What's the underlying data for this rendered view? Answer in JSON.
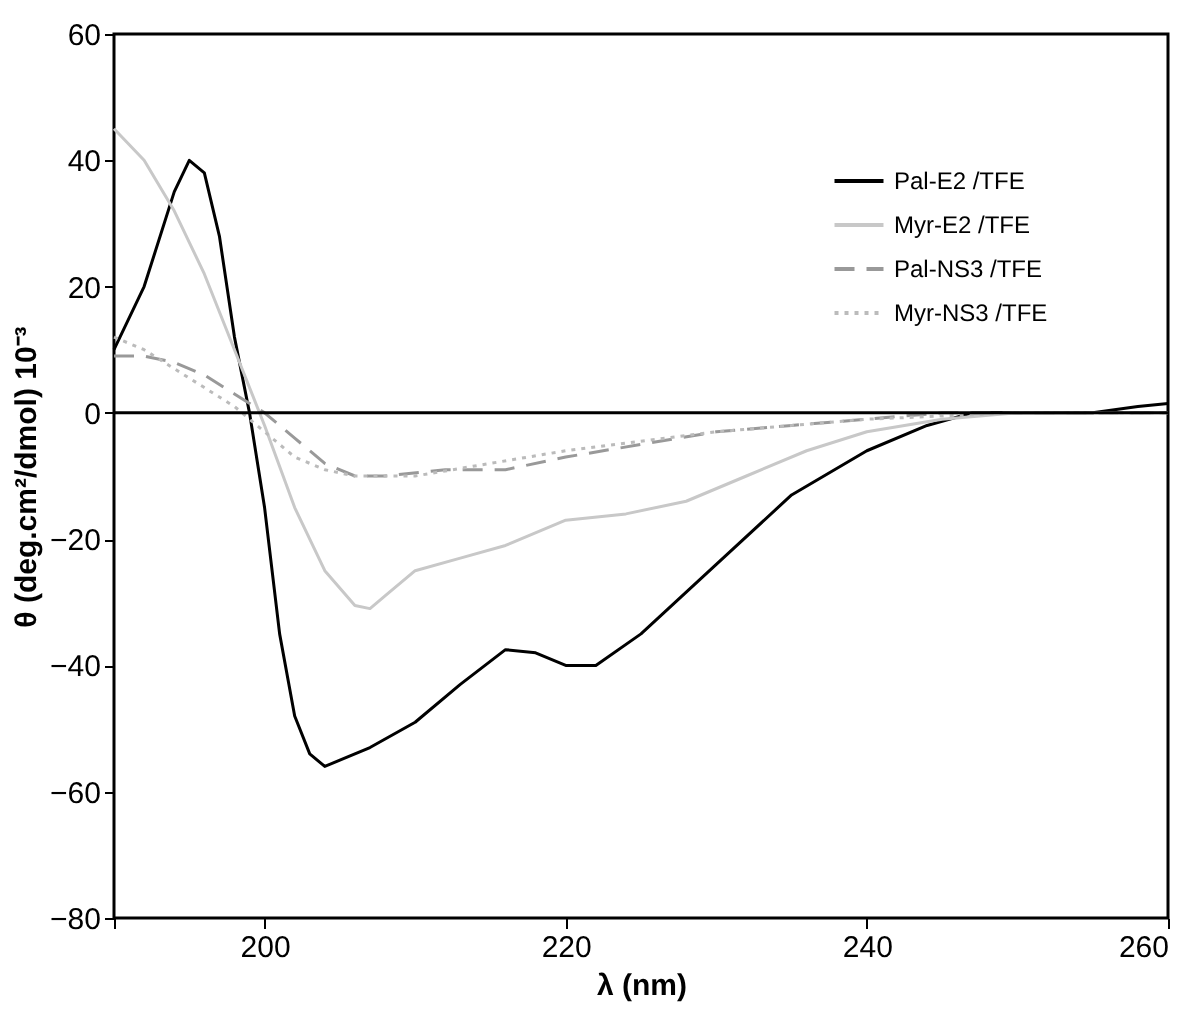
{
  "chart_data": {
    "type": "line",
    "xlabel": "λ (nm)",
    "ylabel": "θ (deg.cm²/dmol) 10⁻³",
    "xlim": [
      190,
      260
    ],
    "xticks": [
      {
        "value": 190,
        "label": null
      },
      200,
      220,
      240,
      260
    ],
    "ylim": [
      -80,
      60
    ],
    "yticks": [
      -80,
      -60,
      -40,
      -20,
      0,
      20,
      40,
      60
    ],
    "grid": false,
    "legend": "top right",
    "marker": "none",
    "ref_lines": [
      {
        "axis": "y",
        "value": 0,
        "label": null,
        "color": "#000000",
        "line_style": "solid"
      }
    ],
    "series": [
      {
        "name": "Pal-E2 /TFE",
        "color": "#000000",
        "line_style": "solid",
        "x": [
          190,
          192,
          194,
          195,
          196,
          197,
          198,
          199,
          200,
          201,
          202,
          203,
          204,
          205,
          207,
          210,
          213,
          216,
          218,
          220,
          222,
          225,
          230,
          235,
          240,
          244,
          247,
          250,
          255,
          258,
          260
        ],
        "values": [
          10,
          20,
          35,
          40,
          38,
          28,
          12,
          0,
          -15,
          -35,
          -48,
          -54,
          -56,
          -55,
          -53,
          -49,
          -43,
          -37.5,
          -38,
          -40,
          -40,
          -35,
          -24,
          -13,
          -6,
          -2,
          0,
          0,
          0,
          1,
          1.5
        ]
      },
      {
        "name": "Myr-E2 /TFE",
        "color": "#c8c8c8",
        "line_style": "solid",
        "x": [
          190,
          192,
          194,
          196,
          198,
          200,
          202,
          204,
          206,
          207,
          208,
          210,
          213,
          216,
          220,
          224,
          228,
          232,
          236,
          240,
          245,
          250,
          260
        ],
        "values": [
          45,
          40,
          32,
          22,
          10,
          -2,
          -15,
          -25,
          -30.5,
          -31,
          -29,
          -25,
          -23,
          -21,
          -17,
          -16,
          -14,
          -10,
          -6,
          -3,
          -1,
          0,
          0
        ]
      },
      {
        "name": "Pal-NS3 /TFE",
        "color": "#999999",
        "line_style": "dashed",
        "x": [
          190,
          192,
          194,
          196,
          198,
          200,
          202,
          204,
          206,
          208,
          212,
          216,
          220,
          225,
          230,
          235,
          240,
          245,
          260
        ],
        "values": [
          9,
          9,
          8,
          6,
          3,
          0,
          -4,
          -8,
          -10,
          -10,
          -9,
          -9,
          -7,
          -5,
          -3,
          -2,
          -1,
          0,
          0
        ]
      },
      {
        "name": "Myr-NS3 /TFE",
        "color": "#bbbbbb",
        "line_style": "dotted",
        "x": [
          190,
          192,
          194,
          196,
          198,
          200,
          202,
          204,
          206,
          210,
          215,
          220,
          230,
          240,
          250,
          260
        ],
        "values": [
          12,
          10,
          7,
          4,
          1,
          -3,
          -7,
          -9,
          -10,
          -10,
          -8,
          -6,
          -3,
          -1,
          0,
          0
        ]
      }
    ]
  }
}
